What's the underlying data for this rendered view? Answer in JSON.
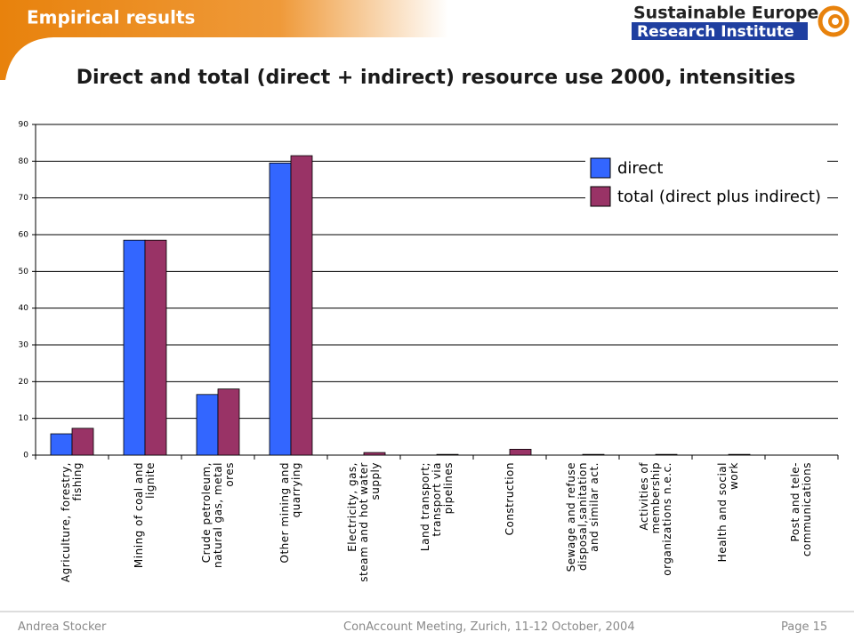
{
  "header": {
    "section": "Empirical results",
    "logo_top": "Sustainable Europe",
    "logo_bottom": "Research Institute"
  },
  "chart_data": {
    "type": "bar",
    "title": "Direct and total (direct + indirect) resource use 2000, intensities",
    "categories": [
      "Agriculture, forestry, fishing",
      "Mining of coal and lignite",
      "Crude petroleum, natural gas, metal ores",
      "Other mining and quarrying",
      "Electricity, gas, steam and hot water supply",
      "Land transport; transport via pipelines",
      "Construction",
      "Sewage and refuse disposal,sanitation and similar act.",
      "Activities of membership organizations n.e.c.",
      "Health and social work",
      "Post and tele-communications"
    ],
    "series": [
      {
        "name": "direct",
        "color": "#3366ff",
        "values": [
          5.8,
          58.5,
          16.5,
          79.5,
          0,
          0,
          0,
          0,
          0,
          0,
          0
        ]
      },
      {
        "name": "total (direct plus indirect)",
        "color": "#993366",
        "values": [
          7.3,
          58.5,
          18,
          81.5,
          0.7,
          0.2,
          1.6,
          0.2,
          0.2,
          0.2,
          0
        ]
      }
    ],
    "ylim": [
      0,
      90
    ],
    "yticks": [
      0,
      10,
      20,
      30,
      40,
      50,
      60,
      70,
      80,
      90
    ],
    "grid": true,
    "legend": "top-right"
  },
  "footer": {
    "author": "Andrea Stocker",
    "event": "ConAccount Meeting, Zurich, 11-12 October, 2004",
    "page": "Page 15"
  }
}
